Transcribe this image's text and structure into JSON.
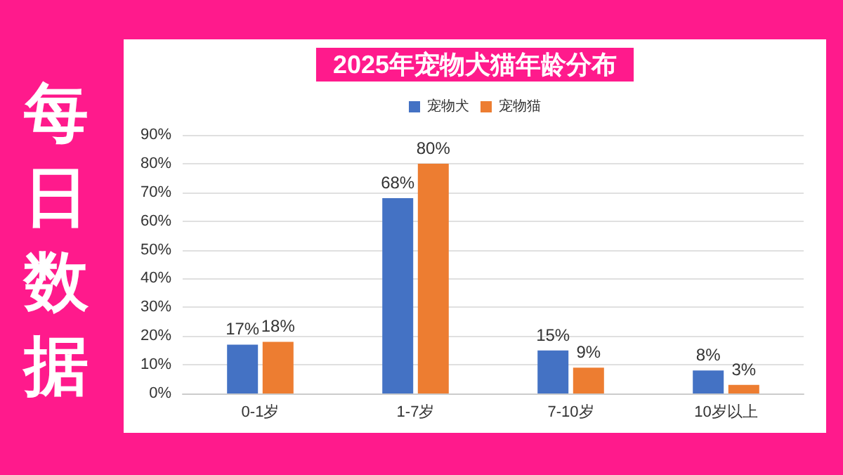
{
  "chart_data": {
    "type": "bar",
    "title": "2025年宠物犬猫年龄分布",
    "categories": [
      "0-1岁",
      "1-7岁",
      "7-10岁",
      "10岁以上"
    ],
    "series": [
      {
        "name": "宠物犬",
        "color": "#4472c4",
        "values": [
          17,
          68,
          15,
          8
        ],
        "value_labels": [
          "17%",
          "68%",
          "15%",
          "8%"
        ]
      },
      {
        "name": "宠物猫",
        "color": "#ed7d31",
        "values": [
          18,
          80,
          9,
          3
        ],
        "value_labels": [
          "18%",
          "80%",
          "9%",
          "3%"
        ]
      }
    ],
    "ylim": [
      0,
      90
    ],
    "yticks": [
      {
        "value": 0,
        "label": "0%"
      },
      {
        "value": 10,
        "label": "10%"
      },
      {
        "value": 20,
        "label": "20%"
      },
      {
        "value": 30,
        "label": "30%"
      },
      {
        "value": 40,
        "label": "40%"
      },
      {
        "value": 50,
        "label": "50%"
      },
      {
        "value": 60,
        "label": "60%"
      },
      {
        "value": 70,
        "label": "70%"
      },
      {
        "value": 80,
        "label": "80%"
      },
      {
        "value": 90,
        "label": "90%"
      }
    ],
    "grid": "y",
    "legend": "top",
    "annotations": [
      "每日数据"
    ]
  }
}
